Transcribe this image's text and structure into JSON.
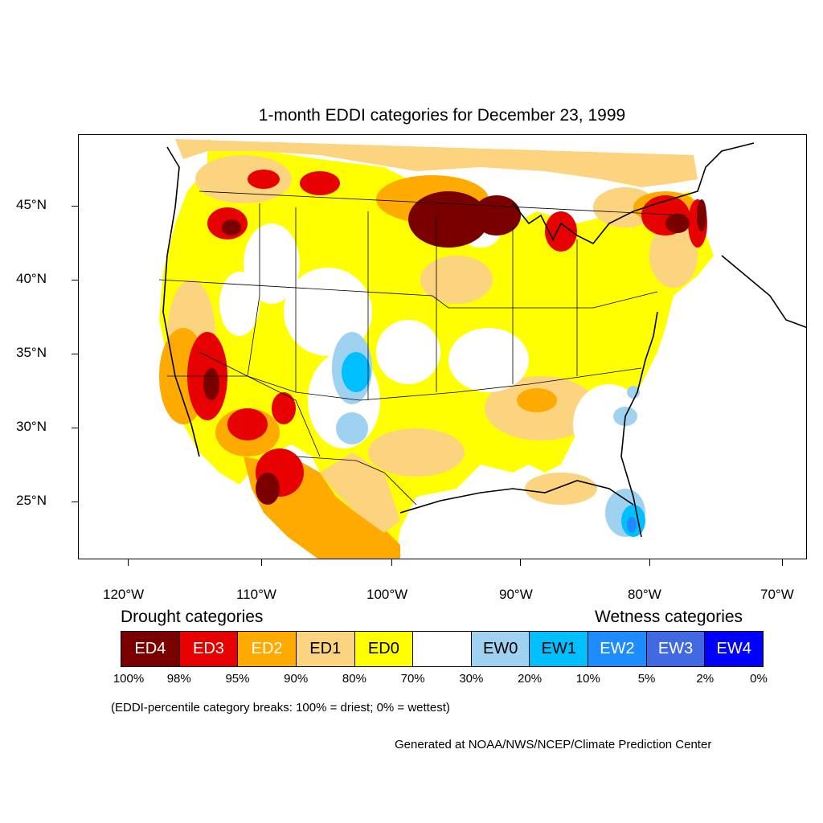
{
  "title": "1-month EDDI categories for December 23, 1999",
  "lat_labels": [
    "45°N",
    "40°N",
    "35°N",
    "30°N",
    "25°N"
  ],
  "lon_labels": [
    "120°W",
    "110°W",
    "100°W",
    "90°W",
    "80°W",
    "70°W"
  ],
  "legend": {
    "drought_heading": "Drought categories",
    "wetness_heading": "Wetness categories",
    "categories": [
      {
        "label": "ED4",
        "color": "#7a0000",
        "text_color": "#ffffff"
      },
      {
        "label": "ED3",
        "color": "#e60000",
        "text_color": "#ffffff"
      },
      {
        "label": "ED2",
        "color": "#ffaa00",
        "text_color": "#ffffff"
      },
      {
        "label": "ED1",
        "color": "#fcd37f",
        "text_color": "#000000"
      },
      {
        "label": "ED0",
        "color": "#ffff00",
        "text_color": "#000000"
      },
      {
        "label": "",
        "color": "#ffffff",
        "text_color": "#000000"
      },
      {
        "label": "EW0",
        "color": "#9fd2f0",
        "text_color": "#000000"
      },
      {
        "label": "EW1",
        "color": "#00bfff",
        "text_color": "#000000"
      },
      {
        "label": "EW2",
        "color": "#1e8cff",
        "text_color": "#ffffff"
      },
      {
        "label": "EW3",
        "color": "#4169e1",
        "text_color": "#ffffff"
      },
      {
        "label": "EW4",
        "color": "#0000ff",
        "text_color": "#ffffff"
      }
    ],
    "percentiles": [
      "100%",
      "98%",
      "95%",
      "90%",
      "80%",
      "70%",
      "30%",
      "20%",
      "10%",
      "5%",
      "2%",
      "0%"
    ]
  },
  "note": "(EDDI-percentile category breaks: 100% = driest; 0% = wettest)",
  "credit": "Generated at NOAA/NWS/NCEP/Climate Prediction Center"
}
